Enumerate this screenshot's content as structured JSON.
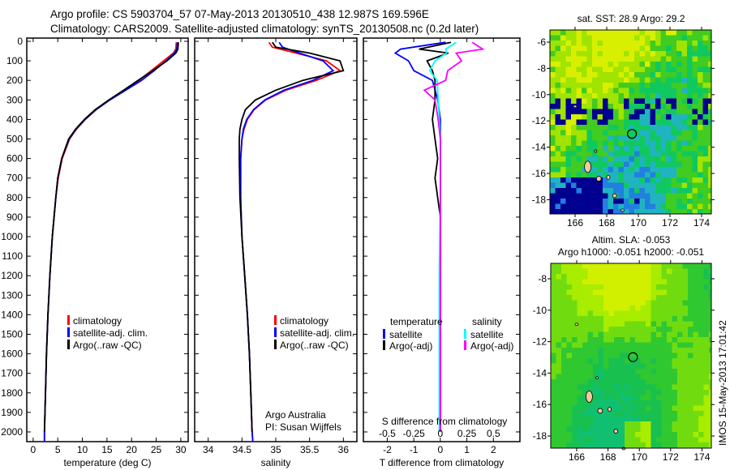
{
  "header": {
    "line1": "Argo profile: CS 5903704_57 07-May-2013 20130510_438 12.987S 169.596E",
    "line2": "Climatology: CARS2009. Satellite-adjusted climatology: synTS_20130508.nc (0.2d later)"
  },
  "colors": {
    "climatology": "#ff0000",
    "satellite": "#0000ff",
    "argo": "#000000",
    "sal_satellite": "#00ffff",
    "sal_argo": "#ff00ff"
  },
  "chart_data": [
    {
      "type": "line",
      "name": "temperature",
      "xlabel": "temperature (deg C)",
      "xlim": [
        -1.3,
        31.5
      ],
      "ylim": [
        0,
        2050
      ],
      "xticks": [
        "0",
        "5",
        "10",
        "15",
        "20",
        "25",
        "30"
      ],
      "xtickvals": [
        0,
        5,
        10,
        15,
        20,
        25,
        30
      ],
      "yticks": [
        "0",
        "100",
        "200",
        "300",
        "400",
        "500",
        "600",
        "700",
        "800",
        "900",
        "1000",
        "1100",
        "1200",
        "1300",
        "1400",
        "1500",
        "1600",
        "1700",
        "1800",
        "1900",
        "2000"
      ],
      "legend": [
        "climatology",
        "satellite-adj. clim.",
        "Argo(..raw -QC)"
      ],
      "series": [
        {
          "name": "climatology",
          "depth": [
            5,
            40,
            60,
            100,
            150,
            200,
            250,
            300,
            350,
            400,
            450,
            500,
            600,
            700,
            800,
            1000,
            1200,
            1400,
            1600,
            1800,
            2000,
            2050
          ],
          "values": [
            29.1,
            29.0,
            28.5,
            26.5,
            24.0,
            21.5,
            18.5,
            15.5,
            12.8,
            10.6,
            8.8,
            7.4,
            5.9,
            5.1,
            4.6,
            3.9,
            3.4,
            3.0,
            2.7,
            2.5,
            2.3,
            2.3
          ]
        },
        {
          "name": "satellite-adj. clim.",
          "depth": [
            5,
            40,
            60,
            100,
            150,
            200,
            250,
            300,
            350,
            400,
            450,
            500,
            600,
            700,
            800,
            1000,
            1200,
            1400,
            1600,
            1800,
            2000,
            2050
          ],
          "values": [
            29.3,
            29.2,
            28.7,
            27.0,
            24.6,
            22.0,
            18.8,
            15.6,
            12.8,
            10.5,
            8.7,
            7.3,
            5.8,
            5.0,
            4.6,
            3.9,
            3.4,
            3.0,
            2.7,
            2.5,
            2.3,
            2.3
          ]
        },
        {
          "name": "Argo(..raw -QC)",
          "depth": [
            5,
            40,
            60,
            100,
            150,
            200,
            250,
            300,
            350,
            400,
            450,
            500,
            600,
            700,
            800,
            1000,
            1200,
            1400,
            1600,
            1800,
            2000
          ],
          "values": [
            29.5,
            29.4,
            29.0,
            27.2,
            24.3,
            21.3,
            18.4,
            15.4,
            12.6,
            10.4,
            8.6,
            7.2,
            5.8,
            5.0,
            4.6,
            3.9,
            3.4,
            3.0,
            2.7,
            2.5,
            2.3
          ]
        }
      ]
    },
    {
      "type": "line",
      "name": "salinity",
      "xlabel": "salinity",
      "xlim": [
        33.8,
        36.2
      ],
      "ylim": [
        0,
        2050
      ],
      "xticks": [
        "34",
        "34.5",
        "35",
        "35.5",
        "36"
      ],
      "xtickvals": [
        34,
        34.5,
        35,
        35.5,
        36
      ],
      "legend": [
        "climatology",
        "satellite-adj. clim.",
        "Argo(..raw -QC)"
      ],
      "annotation": [
        "Argo Australia",
        "PI: Susan Wijffels"
      ],
      "series": [
        {
          "name": "climatology",
          "depth": [
            5,
            30,
            60,
            100,
            150,
            200,
            250,
            300,
            350,
            400,
            450,
            500,
            600,
            800,
            1000,
            1200,
            1400,
            1600,
            1800,
            2000,
            2050
          ],
          "values": [
            34.9,
            34.95,
            35.3,
            35.75,
            35.95,
            35.6,
            35.15,
            34.85,
            34.68,
            34.58,
            34.53,
            34.5,
            34.48,
            34.48,
            34.5,
            34.54,
            34.58,
            34.61,
            34.63,
            34.65,
            34.66
          ]
        },
        {
          "name": "satellite-adj. clim.",
          "depth": [
            5,
            30,
            60,
            100,
            150,
            200,
            250,
            300,
            350,
            400,
            450,
            500,
            600,
            800,
            1000,
            1200,
            1400,
            1600,
            1800,
            2000,
            2050
          ],
          "values": [
            35.05,
            35.1,
            35.35,
            35.7,
            35.85,
            35.55,
            35.12,
            34.84,
            34.67,
            34.57,
            34.52,
            34.5,
            34.48,
            34.48,
            34.5,
            34.54,
            34.58,
            34.61,
            34.63,
            34.65,
            34.66
          ]
        },
        {
          "name": "Argo(..raw -QC)",
          "depth": [
            5,
            30,
            60,
            100,
            150,
            200,
            250,
            300,
            350,
            400,
            450,
            500,
            600,
            800,
            1000,
            1200,
            1400,
            1600,
            1800,
            2000
          ],
          "values": [
            34.95,
            35.0,
            35.5,
            35.95,
            36.0,
            35.4,
            35.0,
            34.7,
            34.55,
            34.5,
            34.47,
            34.46,
            34.46,
            34.47,
            34.5,
            34.54,
            34.58,
            34.61,
            34.63,
            34.65
          ]
        }
      ]
    },
    {
      "type": "line",
      "name": "differences",
      "xlabel": "T difference from climatology",
      "xlabel2": "S difference from climatology",
      "xlim": [
        -2.9,
        3.0
      ],
      "ylim": [
        0,
        2050
      ],
      "xticks": [
        "-2",
        "-1",
        "0",
        "1",
        "2"
      ],
      "xtickvals": [
        -2,
        -1,
        0,
        1,
        2
      ],
      "xticks2": [
        "-0.5",
        "-0.25",
        "0",
        "0.25",
        "0.5"
      ],
      "xtickvals2": [
        -0.5,
        -0.25,
        0,
        0.25,
        0.5
      ],
      "legend": {
        "temperature": "temperature",
        "salinity": "salinity",
        "t_sat": "satellite",
        "t_argo": "Argo(-adj)",
        "s_sat": "satellite",
        "s_argo": "Argo(-adj)"
      },
      "series": [
        {
          "name": "T satellite",
          "depth": [
            5,
            40,
            60,
            100,
            150,
            200,
            300,
            400,
            500,
            700,
            900,
            1200,
            1600,
            2000
          ],
          "values": [
            0.2,
            -1.5,
            -1.7,
            -1.2,
            -1.0,
            -0.3,
            -0.1,
            0.0,
            0.0,
            0.0,
            0.0,
            0.0,
            0.0,
            0.0
          ]
        },
        {
          "name": "T Argo(-adj)",
          "depth": [
            5,
            40,
            60,
            100,
            150,
            200,
            300,
            400,
            500,
            600,
            700,
            800,
            900,
            1000,
            1200,
            1600,
            2000
          ],
          "values": [
            0.4,
            -0.8,
            0.3,
            -0.5,
            -0.3,
            -0.2,
            -0.2,
            -0.3,
            -0.2,
            -0.1,
            -0.2,
            -0.1,
            0.0,
            0.0,
            0.0,
            0.0,
            0.0
          ]
        },
        {
          "name": "S satellite",
          "depth": [
            5,
            40,
            60,
            100,
            150,
            200,
            300,
            500,
            800,
            1200,
            1600,
            2000
          ],
          "values": [
            0.15,
            0.05,
            0.06,
            -0.05,
            -0.1,
            -0.03,
            -0.02,
            0.0,
            0.0,
            -0.01,
            -0.01,
            -0.01
          ]
        },
        {
          "name": "S Argo(-adj)",
          "depth": [
            5,
            40,
            60,
            100,
            150,
            200,
            250,
            300,
            400,
            500,
            800,
            1200,
            1600,
            2000
          ],
          "values": [
            0.3,
            0.4,
            0.15,
            0.2,
            0.07,
            0.05,
            -0.15,
            -0.05,
            -0.02,
            0.0,
            0.0,
            0.0,
            0.0,
            0.0
          ]
        }
      ]
    },
    {
      "type": "heatmap",
      "name": "sst-map",
      "title": "sat. SST: 28.9  Argo: 29.2",
      "xticks": [
        "166",
        "168",
        "170",
        "172",
        "174"
      ],
      "yticks": [
        "-6",
        "-8",
        "-10",
        "-12",
        "-14",
        "-16",
        "-18"
      ],
      "argo_position": {
        "lon": 169.596,
        "lat": -12.987
      }
    },
    {
      "type": "heatmap",
      "name": "sla-map",
      "title1": "Altim. SLA: -0.053",
      "title2": "Argo h1000: -0.051  h2000: -0.051",
      "xticks": [
        "166",
        "168",
        "170",
        "172",
        "174"
      ],
      "yticks": [
        "-8",
        "-10",
        "-12",
        "-14",
        "-16",
        "-18"
      ],
      "argo_position": {
        "lon": 169.596,
        "lat": -12.987
      }
    }
  ],
  "footer": {
    "stamp": "IMOS 15-May-2013 17:01:42"
  }
}
